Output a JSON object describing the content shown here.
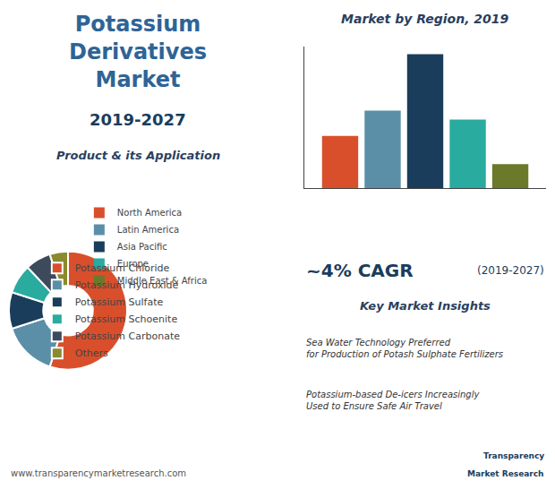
{
  "chart_data": [
    {
      "type": "bar",
      "title": "Market by Region, 2019",
      "categories": [
        null
      ],
      "series": [
        {
          "name": "North America",
          "color": "#d94f2b",
          "values": [
            3.5
          ]
        },
        {
          "name": "Latin America",
          "color": "#5b8fa8",
          "values": [
            5.2
          ]
        },
        {
          "name": "Asia Pacific",
          "color": "#1a3d5c",
          "values": [
            9.0
          ]
        },
        {
          "name": "Europe",
          "color": "#2aab9f",
          "values": [
            4.6
          ]
        },
        {
          "name": "Middle East & Africa",
          "color": "#6b7a2a",
          "values": [
            1.6
          ]
        }
      ],
      "ylim": [
        0,
        9.5
      ],
      "tick_labels": false,
      "grid": false,
      "legend": "bottom",
      "annotations": [
        "~4% CAGR",
        "(2019-2027)",
        "Key Market Insights",
        "Sea Water Technology Preferred\nfor Production of Potash Sulphate Fertilizers",
        "Potassium-based De-icers Increasingly\nUsed to Ensure Safe Air Travel"
      ]
    },
    {
      "type": "pie",
      "title": "Potassium\nDerivatives\nMarket",
      "subtitle": "2019-2027",
      "categories": [
        "Potassium Chloride",
        "Potassium Hydroxide",
        "Potassium Sulfate",
        "Potassium Schoenite",
        "Potassium Carbonate",
        "Others"
      ],
      "values": [
        55,
        15,
        10,
        8,
        7,
        5
      ],
      "colors": [
        "#d94f2b",
        "#5b8fa8",
        "#1a3d5c",
        "#2aab9f",
        "#3d4a5c",
        "#8a8a2e"
      ],
      "legend": "right",
      "annotations": [
        "Product & its Application",
        "www.transparencymarketresearch.com",
        "Transparency",
        "Market Research"
      ]
    }
  ]
}
